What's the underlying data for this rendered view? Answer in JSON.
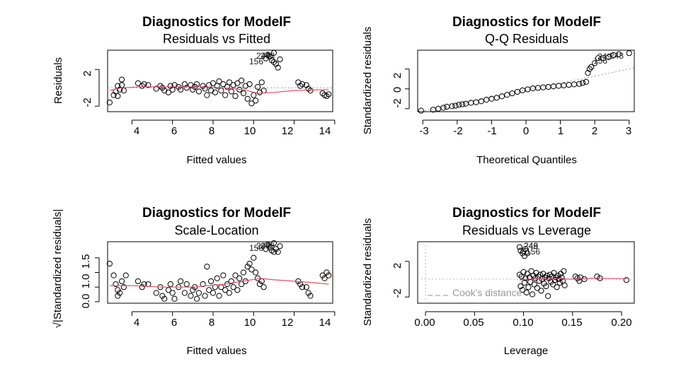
{
  "chart_data": [
    {
      "type": "scatter",
      "title": "Diagnostics for ModelF",
      "subtitle": "Residuals vs Fitted",
      "xlabel": "Fitted values",
      "ylabel": "Residuals",
      "xlim": [
        2.8,
        13.9
      ],
      "ylim": [
        -2.6,
        4.1
      ],
      "xticks": [
        "4",
        "6",
        "8",
        "10",
        "12",
        "14"
      ],
      "yticks": [
        "-2",
        "2"
      ],
      "reference_line": {
        "y": 0,
        "style": "dotted grey"
      },
      "smooth_color": "#DF536B",
      "point_labels": [
        "248",
        "249",
        "156"
      ],
      "points": [
        [
          2.9,
          -1.6
        ],
        [
          3.1,
          -0.8
        ],
        [
          3.2,
          -0.4
        ],
        [
          3.3,
          -0.9
        ],
        [
          3.4,
          -0.2
        ],
        [
          3.5,
          0.3
        ],
        [
          3.5,
          0.9
        ],
        [
          3.6,
          -0.3
        ],
        [
          3.3,
          0.2
        ],
        [
          4.3,
          0.5
        ],
        [
          4.5,
          0.2
        ],
        [
          4.6,
          0.4
        ],
        [
          4.8,
          0.3
        ],
        [
          5.2,
          -0.1
        ],
        [
          5.4,
          0.2
        ],
        [
          5.5,
          0.0
        ],
        [
          5.6,
          -0.3
        ],
        [
          5.8,
          -0.5
        ],
        [
          5.9,
          0.2
        ],
        [
          6.0,
          -0.2
        ],
        [
          6.1,
          0.3
        ],
        [
          6.3,
          0.1
        ],
        [
          6.4,
          -0.2
        ],
        [
          6.6,
          0.4
        ],
        [
          6.7,
          0.0
        ],
        [
          6.9,
          0.3
        ],
        [
          7.0,
          -0.2
        ],
        [
          7.1,
          0.1
        ],
        [
          7.2,
          0.4
        ],
        [
          7.3,
          -0.4
        ],
        [
          7.5,
          0.2
        ],
        [
          7.6,
          -0.1
        ],
        [
          7.7,
          -0.8
        ],
        [
          7.8,
          0.3
        ],
        [
          7.9,
          -0.3
        ],
        [
          8.0,
          0.5
        ],
        [
          8.1,
          -0.5
        ],
        [
          8.2,
          0.2
        ],
        [
          8.3,
          0.7
        ],
        [
          8.4,
          -0.3
        ],
        [
          8.5,
          0.4
        ],
        [
          8.6,
          -0.8
        ],
        [
          8.7,
          0.1
        ],
        [
          8.8,
          0.6
        ],
        [
          8.9,
          -0.4
        ],
        [
          9.0,
          0.3
        ],
        [
          9.1,
          -0.9
        ],
        [
          9.2,
          0.5
        ],
        [
          9.3,
          -0.2
        ],
        [
          9.4,
          0.8
        ],
        [
          9.5,
          -0.6
        ],
        [
          9.6,
          0.2
        ],
        [
          9.7,
          -1.2
        ],
        [
          9.8,
          0.4
        ],
        [
          9.9,
          -1.7
        ],
        [
          10.0,
          -0.8
        ],
        [
          10.1,
          -1.4
        ],
        [
          10.2,
          0.1
        ],
        [
          10.3,
          -0.5
        ],
        [
          10.4,
          0.6
        ],
        [
          10.5,
          -0.3
        ],
        [
          10.6,
          3.2
        ],
        [
          10.7,
          3.6
        ],
        [
          10.8,
          3.4
        ],
        [
          10.9,
          3.0
        ],
        [
          11.0,
          3.8
        ],
        [
          11.1,
          2.6
        ],
        [
          11.2,
          2.2
        ],
        [
          11.3,
          3.1
        ],
        [
          11.0,
          2.8
        ],
        [
          12.2,
          0.6
        ],
        [
          12.3,
          0.2
        ],
        [
          12.4,
          0.4
        ],
        [
          12.6,
          0.3
        ],
        [
          12.7,
          -0.1
        ],
        [
          12.8,
          -0.3
        ],
        [
          13.4,
          -0.6
        ],
        [
          13.5,
          -0.8
        ],
        [
          13.6,
          -0.9
        ],
        [
          13.7,
          -0.7
        ]
      ],
      "smooth": [
        [
          2.9,
          -0.3
        ],
        [
          3.5,
          0.0
        ],
        [
          4.5,
          0.1
        ],
        [
          6.0,
          0.1
        ],
        [
          7.5,
          0.1
        ],
        [
          8.5,
          0.0
        ],
        [
          9.5,
          -0.2
        ],
        [
          10.2,
          -0.6
        ],
        [
          11.0,
          -0.5
        ],
        [
          12.0,
          -0.3
        ],
        [
          13.7,
          -0.2
        ]
      ]
    },
    {
      "type": "scatter",
      "title": "Diagnostics for ModelF",
      "subtitle": "Q-Q Residuals",
      "xlabel": "Theoretical Quantiles",
      "ylabel": "Standardized residuals",
      "xlim": [
        -3.15,
        3.15
      ],
      "ylim": [
        -2.3,
        3.9
      ],
      "xticks": [
        "-3",
        "-2",
        "-1",
        "0",
        "1",
        "2",
        "3"
      ],
      "yticks": [
        "-2",
        "0",
        "2"
      ],
      "reference_line": {
        "from": [
          -3.15,
          -2.35
        ],
        "to": [
          3.15,
          2.1
        ],
        "style": "dotted grey"
      },
      "point_labels": [
        "248",
        "249",
        "156"
      ],
      "points": [
        [
          -3.05,
          -2.2
        ],
        [
          -2.7,
          -2.1
        ],
        [
          -2.55,
          -2.0
        ],
        [
          -2.4,
          -1.9
        ],
        [
          -2.3,
          -1.8
        ],
        [
          -2.15,
          -1.75
        ],
        [
          -2.05,
          -1.7
        ],
        [
          -1.95,
          -1.6
        ],
        [
          -1.85,
          -1.55
        ],
        [
          -1.75,
          -1.5
        ],
        [
          -1.6,
          -1.4
        ],
        [
          -1.45,
          -1.35
        ],
        [
          -1.3,
          -1.25
        ],
        [
          -1.15,
          -1.1
        ],
        [
          -1.0,
          -1.0
        ],
        [
          -0.85,
          -0.9
        ],
        [
          -0.7,
          -0.75
        ],
        [
          -0.55,
          -0.6
        ],
        [
          -0.4,
          -0.45
        ],
        [
          -0.25,
          -0.3
        ],
        [
          -0.1,
          -0.15
        ],
        [
          0.05,
          -0.05
        ],
        [
          0.2,
          0.05
        ],
        [
          0.35,
          0.1
        ],
        [
          0.5,
          0.15
        ],
        [
          0.65,
          0.2
        ],
        [
          0.8,
          0.25
        ],
        [
          0.95,
          0.3
        ],
        [
          1.1,
          0.35
        ],
        [
          1.25,
          0.4
        ],
        [
          1.4,
          0.45
        ],
        [
          1.55,
          0.5
        ],
        [
          1.65,
          0.6
        ],
        [
          1.75,
          0.7
        ],
        [
          1.8,
          1.6
        ],
        [
          1.85,
          2.0
        ],
        [
          1.9,
          2.2
        ],
        [
          2.0,
          2.6
        ],
        [
          2.1,
          3.1
        ],
        [
          2.25,
          3.1
        ],
        [
          2.4,
          3.2
        ],
        [
          2.55,
          3.4
        ],
        [
          2.7,
          3.5
        ],
        [
          3.0,
          3.6
        ]
      ]
    },
    {
      "type": "scatter",
      "title": "Diagnostics for ModelF",
      "subtitle": "Scale-Location",
      "xlabel": "Fitted values",
      "ylabel": "√|Standardized residuals|",
      "xlim": [
        2.8,
        13.9
      ],
      "ylim": [
        -0.05,
        2.05
      ],
      "xticks": [
        "4",
        "6",
        "8",
        "10",
        "12",
        "14"
      ],
      "yticks": [
        "0.0",
        "0.5",
        "1.0",
        "1.5"
      ],
      "smooth_color": "#DF536B",
      "point_labels": [
        "248",
        "249",
        "156"
      ],
      "points": [
        [
          2.9,
          1.3
        ],
        [
          3.1,
          0.9
        ],
        [
          3.2,
          0.6
        ],
        [
          3.3,
          0.4
        ],
        [
          3.4,
          0.3
        ],
        [
          3.5,
          0.7
        ],
        [
          3.6,
          0.5
        ],
        [
          3.7,
          0.9
        ],
        [
          3.3,
          0.2
        ],
        [
          4.3,
          0.7
        ],
        [
          4.5,
          0.5
        ],
        [
          4.6,
          0.6
        ],
        [
          4.8,
          0.6
        ],
        [
          5.2,
          0.3
        ],
        [
          5.4,
          0.5
        ],
        [
          5.5,
          0.2
        ],
        [
          5.6,
          0.1
        ],
        [
          5.8,
          0.4
        ],
        [
          5.9,
          0.6
        ],
        [
          6.0,
          0.3
        ],
        [
          6.1,
          0.1
        ],
        [
          6.3,
          0.5
        ],
        [
          6.4,
          0.7
        ],
        [
          6.6,
          0.3
        ],
        [
          6.7,
          0.6
        ],
        [
          6.9,
          0.2
        ],
        [
          7.0,
          0.4
        ],
        [
          7.1,
          0.5
        ],
        [
          7.2,
          0.1
        ],
        [
          7.3,
          0.3
        ],
        [
          7.5,
          0.6
        ],
        [
          7.6,
          0.2
        ],
        [
          7.7,
          1.2
        ],
        [
          7.8,
          0.4
        ],
        [
          7.9,
          0.7
        ],
        [
          8.0,
          0.3
        ],
        [
          8.1,
          0.5
        ],
        [
          8.2,
          0.8
        ],
        [
          8.3,
          0.2
        ],
        [
          8.4,
          0.5
        ],
        [
          8.5,
          0.9
        ],
        [
          8.6,
          0.4
        ],
        [
          8.7,
          0.6
        ],
        [
          8.8,
          0.3
        ],
        [
          8.9,
          0.7
        ],
        [
          9.0,
          0.5
        ],
        [
          9.1,
          0.9
        ],
        [
          9.2,
          0.4
        ],
        [
          9.3,
          0.8
        ],
        [
          9.4,
          0.6
        ],
        [
          9.5,
          1.0
        ],
        [
          9.6,
          0.7
        ],
        [
          9.7,
          1.2
        ],
        [
          9.8,
          1.3
        ],
        [
          9.9,
          1.1
        ],
        [
          10.0,
          1.5
        ],
        [
          10.1,
          1.0
        ],
        [
          10.2,
          0.8
        ],
        [
          10.3,
          0.6
        ],
        [
          10.4,
          0.7
        ],
        [
          10.5,
          0.5
        ],
        [
          10.6,
          1.8
        ],
        [
          10.7,
          1.95
        ],
        [
          10.8,
          1.85
        ],
        [
          10.9,
          1.75
        ],
        [
          11.0,
          2.0
        ],
        [
          11.1,
          1.8
        ],
        [
          11.2,
          1.7
        ],
        [
          11.3,
          1.9
        ],
        [
          11.0,
          1.7
        ],
        [
          12.2,
          0.7
        ],
        [
          12.3,
          0.6
        ],
        [
          12.4,
          0.5
        ],
        [
          12.6,
          0.5
        ],
        [
          12.7,
          0.3
        ],
        [
          12.8,
          0.2
        ],
        [
          13.4,
          0.9
        ],
        [
          13.5,
          0.8
        ],
        [
          13.6,
          1.0
        ],
        [
          13.7,
          0.9
        ]
      ],
      "smooth": [
        [
          2.9,
          0.55
        ],
        [
          4.0,
          0.55
        ],
        [
          5.5,
          0.5
        ],
        [
          7.0,
          0.5
        ],
        [
          8.5,
          0.6
        ],
        [
          9.5,
          0.7
        ],
        [
          10.3,
          0.8
        ],
        [
          11.0,
          0.75
        ],
        [
          12.0,
          0.7
        ],
        [
          13.0,
          0.65
        ],
        [
          13.7,
          0.6
        ]
      ]
    },
    {
      "type": "scatter",
      "title": "Diagnostics for ModelF",
      "subtitle": "Residuals vs Leverage",
      "xlabel": "Leverage",
      "ylabel": "Standardized residuals",
      "xlim": [
        -0.008,
        0.213
      ],
      "ylim": [
        -2.7,
        4.2
      ],
      "xticks": [
        "0.00",
        "0.05",
        "0.10",
        "0.15",
        "0.20"
      ],
      "yticks": [
        "-2",
        "2"
      ],
      "legend": {
        "label": "Cook's distance",
        "position": "bottom-left"
      },
      "smooth_color": "#DF536B",
      "point_labels": [
        "248",
        "249",
        "156"
      ],
      "points": [
        [
          0.096,
          3.6
        ],
        [
          0.097,
          3.2
        ],
        [
          0.099,
          2.9
        ],
        [
          0.1,
          3.1
        ],
        [
          0.101,
          2.6
        ],
        [
          0.102,
          3.4
        ],
        [
          0.104,
          2.9
        ],
        [
          0.096,
          0.5
        ],
        [
          0.097,
          -0.8
        ],
        [
          0.098,
          0.3
        ],
        [
          0.099,
          -1.2
        ],
        [
          0.1,
          0.8
        ],
        [
          0.101,
          -0.4
        ],
        [
          0.102,
          0.1
        ],
        [
          0.103,
          -1.5
        ],
        [
          0.104,
          0.6
        ],
        [
          0.105,
          -0.9
        ],
        [
          0.106,
          0.2
        ],
        [
          0.107,
          -0.3
        ],
        [
          0.108,
          0.9
        ],
        [
          0.109,
          -1.7
        ],
        [
          0.11,
          0.4
        ],
        [
          0.111,
          -0.6
        ],
        [
          0.112,
          0.1
        ],
        [
          0.113,
          0.7
        ],
        [
          0.114,
          -1.0
        ],
        [
          0.115,
          0.3
        ],
        [
          0.116,
          -0.2
        ],
        [
          0.117,
          0.5
        ],
        [
          0.118,
          -1.3
        ],
        [
          0.119,
          0.0
        ],
        [
          0.12,
          0.6
        ],
        [
          0.121,
          -0.5
        ],
        [
          0.122,
          0.2
        ],
        [
          0.123,
          -0.8
        ],
        [
          0.124,
          0.4
        ],
        [
          0.125,
          -1.9
        ],
        [
          0.126,
          0.1
        ],
        [
          0.127,
          0.5
        ],
        [
          0.128,
          -0.3
        ],
        [
          0.129,
          0.3
        ],
        [
          0.13,
          -0.6
        ],
        [
          0.131,
          0.7
        ],
        [
          0.132,
          -0.1
        ],
        [
          0.133,
          0.2
        ],
        [
          0.134,
          -0.9
        ],
        [
          0.135,
          0.4
        ],
        [
          0.136,
          0.0
        ],
        [
          0.137,
          -0.4
        ],
        [
          0.138,
          0.6
        ],
        [
          0.139,
          0.2
        ],
        [
          0.14,
          -0.2
        ],
        [
          0.141,
          0.9
        ],
        [
          0.142,
          -0.7
        ],
        [
          0.153,
          0.3
        ],
        [
          0.155,
          0.1
        ],
        [
          0.157,
          -0.2
        ],
        [
          0.158,
          0.2
        ],
        [
          0.162,
          0.0
        ],
        [
          0.175,
          0.3
        ],
        [
          0.178,
          0.1
        ],
        [
          0.205,
          -0.1
        ]
      ],
      "smooth": [
        [
          0.096,
          -0.1
        ],
        [
          0.105,
          0.0
        ],
        [
          0.115,
          0.05
        ],
        [
          0.125,
          0.0
        ],
        [
          0.135,
          0.05
        ],
        [
          0.15,
          0.0
        ],
        [
          0.17,
          0.1
        ],
        [
          0.205,
          0.05
        ]
      ]
    }
  ]
}
